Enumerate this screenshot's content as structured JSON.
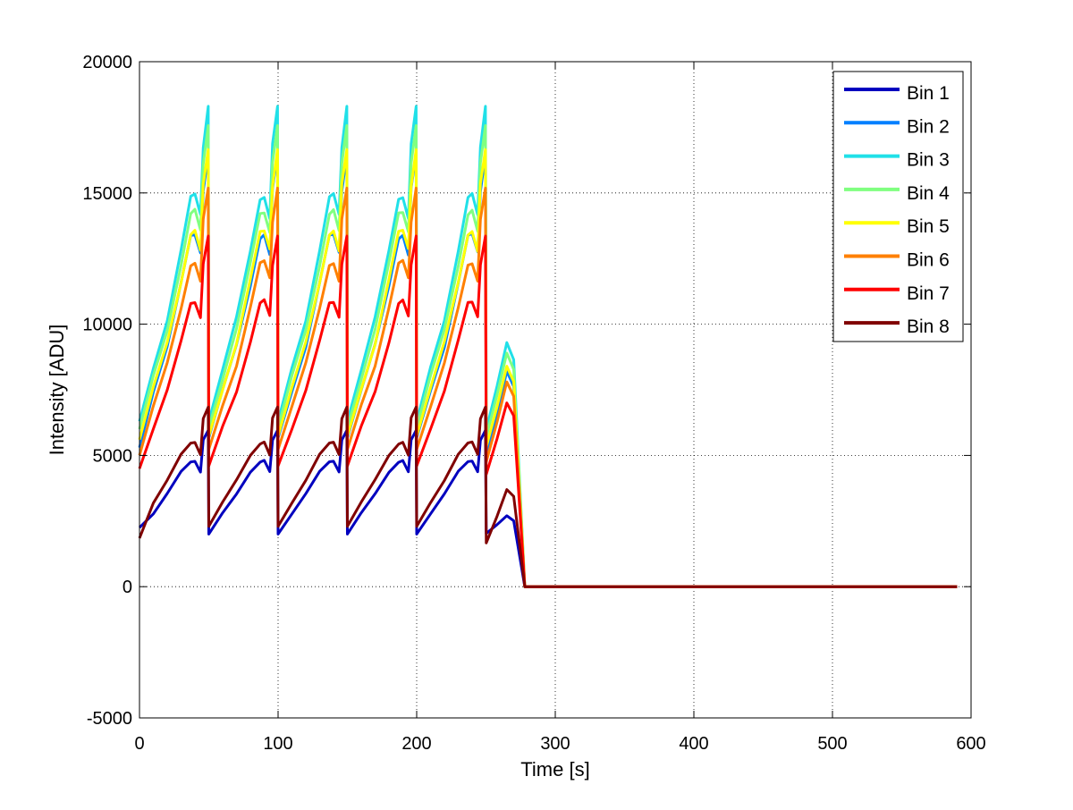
{
  "chart_data": {
    "type": "line",
    "title": "",
    "xlabel": "Time [s]",
    "ylabel": "Intensity [ADU]",
    "xlim": [
      0,
      600
    ],
    "ylim": [
      -5000,
      20000
    ],
    "xticks": [
      0,
      100,
      200,
      300,
      400,
      500,
      600
    ],
    "yticks": [
      -5000,
      0,
      5000,
      10000,
      15000,
      20000
    ],
    "grid": true,
    "legend_position": "top-right",
    "series": [
      {
        "name": "Bin 1",
        "color": "#0000bf",
        "start": 2250,
        "w": 0.27,
        "final_burst_peak": 2700
      },
      {
        "name": "Bin 2",
        "color": "#0080ff",
        "start": 5300,
        "w": 0.9,
        "final_burst_peak": 8200
      },
      {
        "name": "Bin 3",
        "color": "#20e0e8",
        "start": 6300,
        "w": 1.0,
        "final_burst_peak": 9300
      },
      {
        "name": "Bin 4",
        "color": "#80ff80",
        "start": 6000,
        "w": 0.96,
        "final_burst_peak": 8900
      },
      {
        "name": "Bin 5",
        "color": "#ffff00",
        "start": 5600,
        "w": 0.91,
        "final_burst_peak": 8400
      },
      {
        "name": "Bin 6",
        "color": "#ff8000",
        "start": 5000,
        "w": 0.83,
        "final_burst_peak": 7800
      },
      {
        "name": "Bin 7",
        "color": "#ff0000",
        "start": 4500,
        "w": 0.73,
        "final_burst_peak": 7000
      },
      {
        "name": "Bin 8",
        "color": "#800000",
        "start": 1850,
        "w": 0.31,
        "final_burst_peak": 3700
      }
    ]
  }
}
